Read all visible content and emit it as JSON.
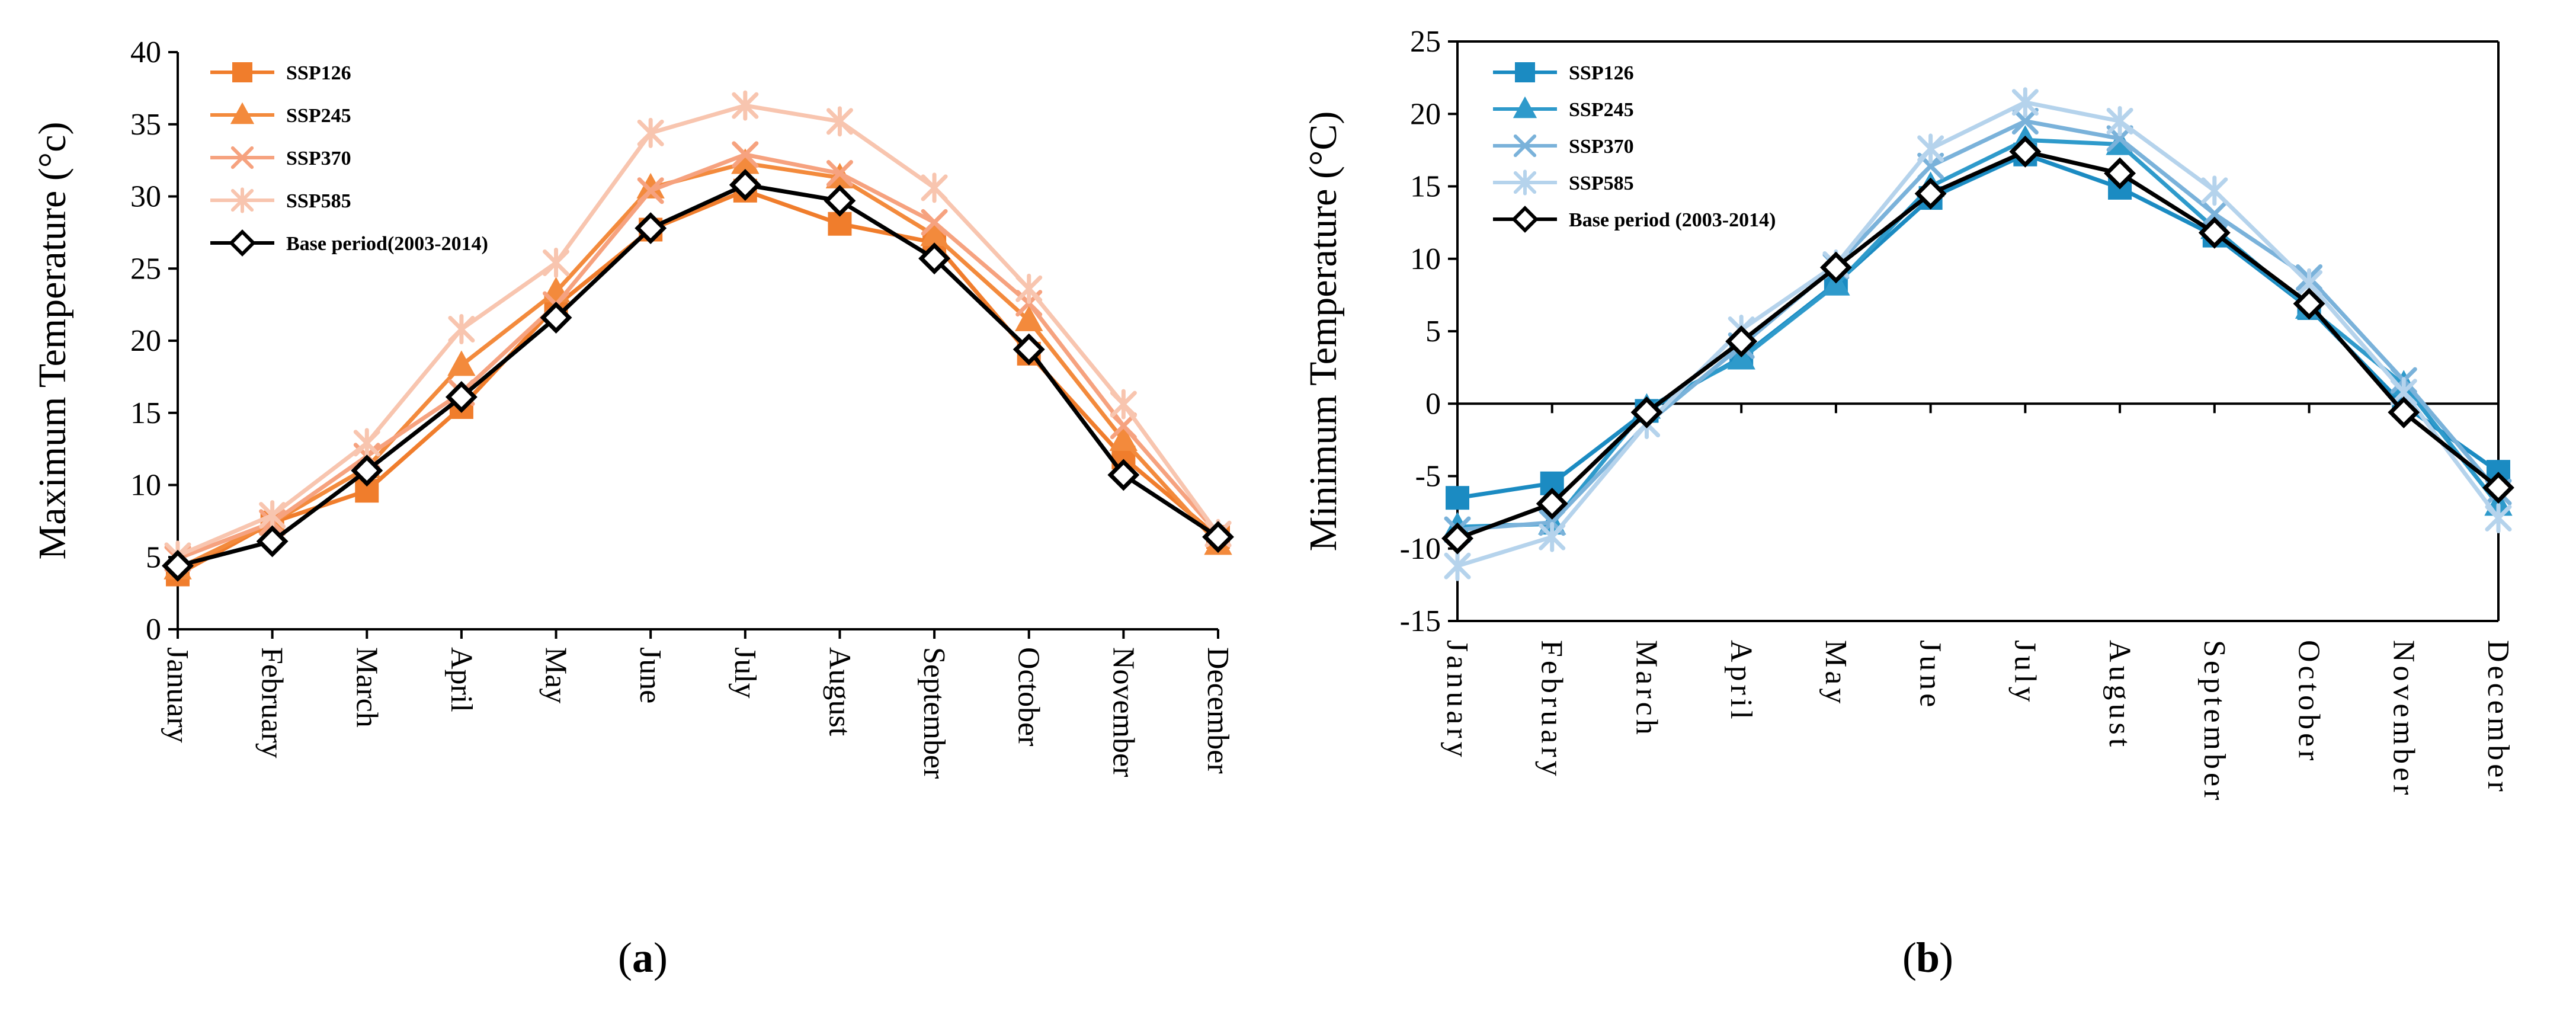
{
  "colors": {
    "SSP126_max": "#F07D2C",
    "SSP245_max": "#F38A3C",
    "SSP370_max": "#F6A27F",
    "SSP585_max": "#F8C5AF",
    "SSP126_min": "#1B8BC2",
    "SSP245_min": "#2E9ACB",
    "SSP370_min": "#7AB2DA",
    "SSP585_min": "#B5D3EC",
    "base": "#000000"
  },
  "chart_data": [
    {
      "type": "line",
      "panel_label": "a",
      "ylabel": "Maximum Temperature (°c)",
      "xlabel": "",
      "ylim": [
        0,
        40
      ],
      "yticks": [
        0,
        5,
        10,
        15,
        20,
        25,
        30,
        35,
        40
      ],
      "ytick_labels": [
        "0",
        "5",
        "10",
        "15",
        "20",
        "25",
        "30",
        "35",
        "40"
      ],
      "categories": [
        "January",
        "February",
        "March",
        "April",
        "May",
        "June",
        "July",
        "August",
        "September",
        "October",
        "November",
        "December"
      ],
      "legend_position": "top-left",
      "series": [
        {
          "name": "SSP126",
          "marker": "square",
          "color": "#F07D2C",
          "values": [
            3.8,
            7.4,
            9.6,
            15.4,
            22.4,
            27.7,
            30.4,
            28.1,
            26.8,
            19.1,
            11.9,
            6.4
          ]
        },
        {
          "name": "SSP245",
          "marker": "triangle",
          "color": "#F38A3C",
          "values": [
            4.2,
            7.4,
            11.2,
            18.3,
            23.4,
            30.6,
            32.3,
            31.3,
            27.3,
            21.4,
            13.1,
            5.9
          ]
        },
        {
          "name": "SSP370",
          "marker": "x",
          "color": "#F6A27F",
          "values": [
            4.9,
            7.4,
            12.0,
            16.4,
            22.5,
            30.4,
            32.9,
            31.6,
            28.2,
            22.6,
            14.1,
            6.6
          ]
        },
        {
          "name": "SSP585",
          "marker": "star",
          "color": "#F8C5AF",
          "values": [
            5.1,
            7.9,
            12.9,
            20.8,
            25.4,
            34.4,
            36.3,
            35.2,
            30.6,
            23.6,
            15.6,
            6.6
          ]
        },
        {
          "name": "Base period(2003-2014)",
          "marker": "diamond",
          "color": "#000000",
          "values": [
            4.4,
            6.1,
            11.0,
            16.1,
            21.6,
            27.8,
            30.8,
            29.7,
            25.7,
            19.4,
            10.7,
            6.4
          ]
        }
      ]
    },
    {
      "type": "line",
      "panel_label": "b",
      "ylabel": "Minimum Temperature (°C)",
      "xlabel": "",
      "ylim": [
        -15,
        25
      ],
      "yticks": [
        -15,
        -10,
        -5,
        0,
        5,
        10,
        15,
        20,
        25
      ],
      "ytick_labels": [
        "-15",
        "-10",
        "-5",
        "0",
        "5",
        "10",
        "15",
        "20",
        "25"
      ],
      "categories": [
        "January",
        "February",
        "March",
        "April",
        "May",
        "June",
        "July",
        "August",
        "September",
        "October",
        "November",
        "December"
      ],
      "legend_position": "top-left",
      "series": [
        {
          "name": "SSP126",
          "marker": "square",
          "color": "#1B8BC2",
          "values": [
            -6.5,
            -5.5,
            -0.5,
            3.2,
            8.3,
            14.2,
            17.2,
            14.9,
            11.6,
            6.6,
            -0.1,
            -4.7
          ]
        },
        {
          "name": "SSP245",
          "marker": "triangle",
          "color": "#2E9ACB",
          "values": [
            -8.5,
            -8.3,
            -0.3,
            3.1,
            8.2,
            15.0,
            18.2,
            17.9,
            12.1,
            6.6,
            1.3,
            -7.0
          ]
        },
        {
          "name": "SSP370",
          "marker": "x",
          "color": "#7AB2DA",
          "values": [
            -8.7,
            -8.2,
            -1.4,
            4.0,
            9.5,
            16.4,
            19.5,
            18.3,
            13.1,
            8.7,
            1.6,
            -6.1
          ]
        },
        {
          "name": "SSP585",
          "marker": "star",
          "color": "#B5D3EC",
          "values": [
            -11.2,
            -9.2,
            -1.4,
            5.1,
            9.6,
            17.6,
            20.8,
            19.5,
            14.7,
            8.3,
            0.8,
            -7.9
          ]
        },
        {
          "name": "Base period (2003-2014)",
          "marker": "diamond",
          "color": "#000000",
          "values": [
            -9.3,
            -6.9,
            -0.6,
            4.3,
            9.4,
            14.5,
            17.4,
            15.9,
            11.8,
            6.9,
            -0.6,
            -5.8
          ]
        }
      ]
    }
  ]
}
